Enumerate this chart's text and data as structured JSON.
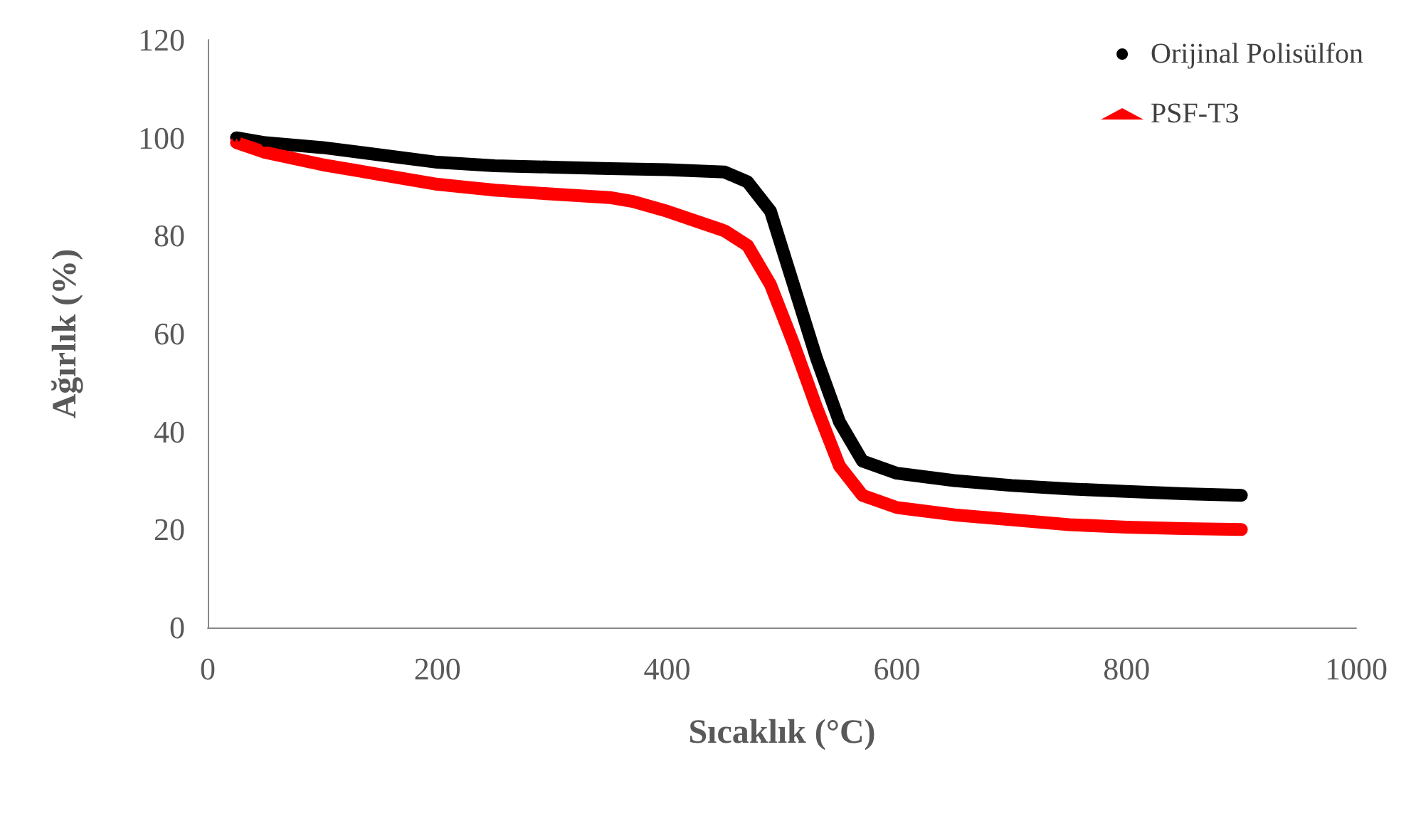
{
  "chart_data": {
    "type": "line",
    "xlabel": "Sıcaklık (°C)",
    "ylabel": "Ağırlık (%)",
    "xlim": [
      0,
      1000
    ],
    "xticks": [
      0,
      200,
      400,
      600,
      800,
      1000
    ],
    "ylim": [
      0,
      120
    ],
    "yticks": [
      0,
      20,
      40,
      60,
      80,
      100,
      120
    ],
    "grid": false,
    "legend": "top right",
    "series": [
      {
        "name": "Orijinal Polisülfon",
        "color": "#000000",
        "marker": "circle",
        "x": [
          25,
          50,
          100,
          150,
          200,
          250,
          300,
          350,
          400,
          450,
          470,
          490,
          510,
          530,
          550,
          570,
          600,
          650,
          700,
          750,
          800,
          850,
          900
        ],
        "values": [
          100,
          99,
          98,
          96.5,
          95,
          94.3,
          94,
          93.7,
          93.5,
          93,
          91,
          85,
          70,
          55,
          42,
          34,
          31.5,
          30,
          29,
          28.3,
          27.8,
          27.3,
          27
        ]
      },
      {
        "name": "PSF-T3",
        "color": "#ff0000",
        "marker": "triangle",
        "x": [
          25,
          50,
          100,
          150,
          200,
          250,
          300,
          350,
          370,
          400,
          450,
          470,
          490,
          510,
          530,
          550,
          570,
          600,
          650,
          700,
          750,
          800,
          850,
          900
        ],
        "values": [
          99,
          97,
          94.5,
          92.5,
          90.5,
          89.3,
          88.5,
          87.8,
          87,
          85,
          81,
          78,
          70,
          58,
          45,
          33,
          27,
          24.5,
          23,
          22,
          21,
          20.5,
          20.2,
          20
        ]
      }
    ]
  }
}
